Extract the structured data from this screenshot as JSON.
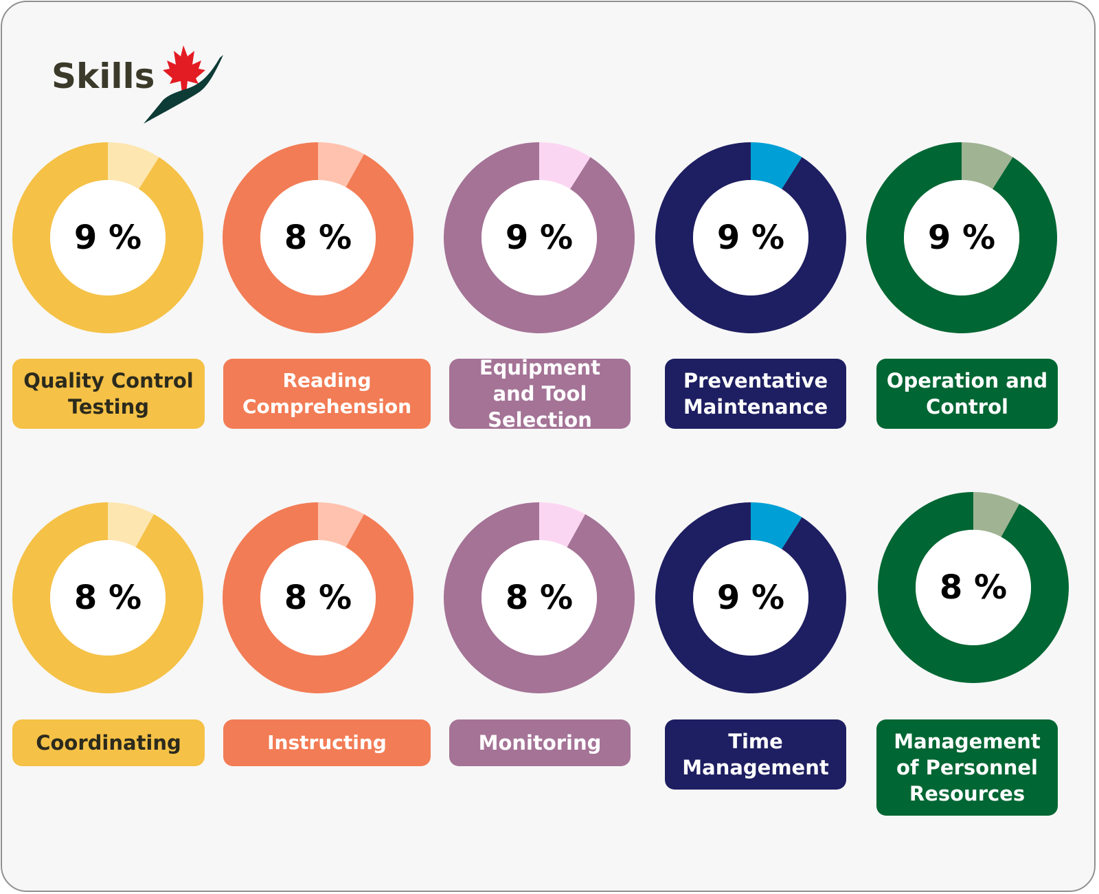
{
  "brand": {
    "name": "Skills",
    "logo_icon": "maple-leaf-checkmark-icon",
    "leaf_color": "#e31b23",
    "swoosh_color": "#0d3b36"
  },
  "colors": {
    "yellow": {
      "main": "#f5c146",
      "light": "#fde6b0",
      "text": "#2b2a1d"
    },
    "orange": {
      "main": "#f27c55",
      "light": "#ffc2ae",
      "text": "#ffffff"
    },
    "purple": {
      "main": "#a47396",
      "light": "#fbd6f2",
      "text": "#ffffff"
    },
    "navy": {
      "main": "#1e1e62",
      "light": "#00a0d6",
      "text": "#ffffff"
    },
    "green": {
      "main": "#006633",
      "light": "#a0b393",
      "text": "#ffffff"
    }
  },
  "chart_data": [
    {
      "type": "pie",
      "label": "Quality Control Testing",
      "value": 9,
      "display": "9 %",
      "color": "yellow"
    },
    {
      "type": "pie",
      "label": "Reading Comprehension",
      "value": 8,
      "display": "8 %",
      "color": "orange"
    },
    {
      "type": "pie",
      "label": "Equipment and Tool Selection",
      "value": 9,
      "display": "9 %",
      "color": "purple"
    },
    {
      "type": "pie",
      "label": "Preventative Maintenance",
      "value": 9,
      "display": "9 %",
      "color": "navy"
    },
    {
      "type": "pie",
      "label": "Operation and Control",
      "value": 9,
      "display": "9 %",
      "color": "green"
    },
    {
      "type": "pie",
      "label": "Coordinating",
      "value": 8,
      "display": "8 %",
      "color": "yellow"
    },
    {
      "type": "pie",
      "label": "Instructing",
      "value": 8,
      "display": "8 %",
      "color": "orange"
    },
    {
      "type": "pie",
      "label": "Monitoring",
      "value": 8,
      "display": "8 %",
      "color": "purple"
    },
    {
      "type": "pie",
      "label": "Time Management",
      "value": 9,
      "display": "9 %",
      "color": "navy"
    },
    {
      "type": "pie",
      "label": "Management of Personnel Resources",
      "value": 8,
      "display": "8 %",
      "color": "green"
    }
  ]
}
